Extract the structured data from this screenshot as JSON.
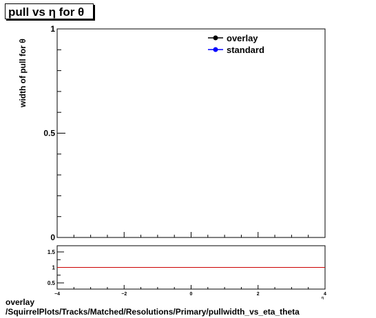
{
  "title": "pull vs  η for  θ",
  "footer": {
    "line1": "overlay",
    "line2": "/SquirrelPlots/Tracks/Matched/Resolutions/Primary/pullwidth_vs_eta_theta"
  },
  "chart_data": [
    {
      "type": "line",
      "ylabel": "width of pull for  θ",
      "ylim": [
        0,
        1
      ],
      "y_ticks": [
        "0",
        "0.5",
        "1"
      ],
      "legend": {
        "placement": "top-right"
      },
      "series": [
        {
          "name": "overlay",
          "color": "#000000",
          "values": []
        },
        {
          "name": "standard",
          "color": "#0000ff",
          "values": []
        }
      ]
    },
    {
      "type": "line",
      "xlim": [
        -4,
        4
      ],
      "ylim": [
        0.3,
        1.7
      ],
      "x_ticks": [
        "−4",
        "−2",
        "0",
        "2",
        "4"
      ],
      "y_ticks": [
        "0.5",
        "1",
        "1.5"
      ],
      "x_axis_marker": "η",
      "reference_line": {
        "y": 1,
        "color": "#cc0000"
      }
    }
  ]
}
